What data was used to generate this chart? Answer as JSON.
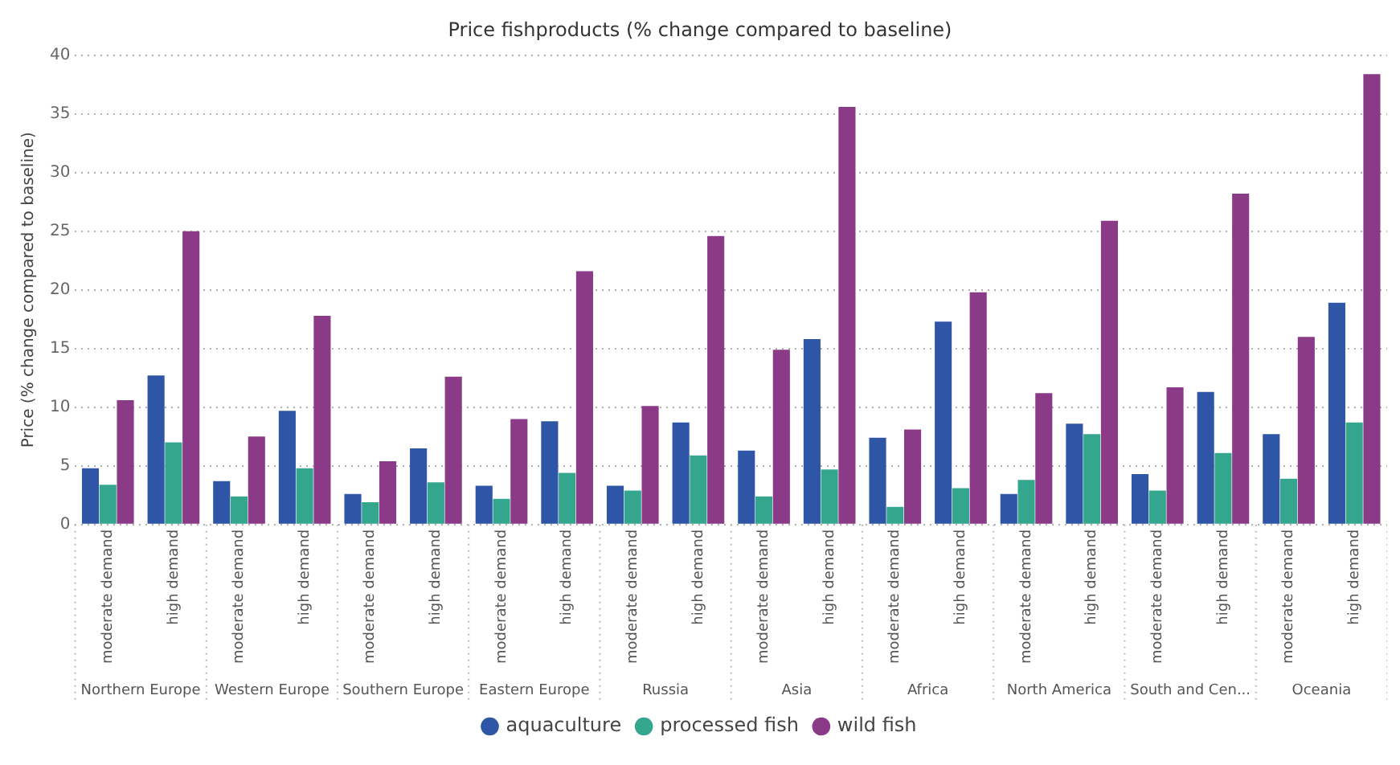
{
  "chart_data": {
    "type": "bar",
    "title": "Price fishproducts (% change compared to baseline)",
    "ylabel": "Price (% change compared to baseline)",
    "categories": [
      "moderate demand",
      "high demand",
      "moderate demand",
      "high demand",
      "moderate demand",
      "high demand",
      "moderate demand",
      "high demand",
      "moderate demand",
      "high demand",
      "moderate demand",
      "high demand",
      "moderate demand",
      "high demand",
      "moderate demand",
      "high demand",
      "moderate demand",
      "high demand",
      "moderate demand",
      "high demand"
    ],
    "annotations": [
      "Northern Europe",
      "Western Europe",
      "Southern Europe",
      "Eastern Europe",
      "Russia",
      "Asia",
      "Africa",
      "North America",
      "South and Cen...",
      "Oceania"
    ],
    "series": [
      {
        "name": "aquaculture",
        "color": "#2e55a6",
        "values": [
          4.8,
          12.7,
          3.7,
          9.7,
          2.6,
          6.5,
          3.3,
          8.8,
          3.3,
          8.7,
          6.3,
          15.8,
          7.4,
          17.3,
          2.6,
          8.6,
          4.3,
          11.3,
          7.7,
          18.9
        ]
      },
      {
        "name": "processed fish",
        "color": "#35a68e",
        "values": [
          3.4,
          7.0,
          2.4,
          4.8,
          1.9,
          3.6,
          2.2,
          4.4,
          2.9,
          5.9,
          2.4,
          4.7,
          1.5,
          3.1,
          3.8,
          7.7,
          2.9,
          6.1,
          3.9,
          8.7
        ]
      },
      {
        "name": "wild fish",
        "color": "#8b3a87",
        "values": [
          10.6,
          25.0,
          7.5,
          17.8,
          5.4,
          12.6,
          9.0,
          21.6,
          10.1,
          24.6,
          14.9,
          35.6,
          8.1,
          19.8,
          11.2,
          25.9,
          11.7,
          28.2,
          16.0,
          38.4
        ]
      }
    ],
    "ylim": [
      0,
      40
    ],
    "yticks": [
      0,
      5,
      10,
      15,
      20,
      25,
      30,
      35,
      40
    ],
    "grid": "y",
    "legend": "bottom"
  }
}
